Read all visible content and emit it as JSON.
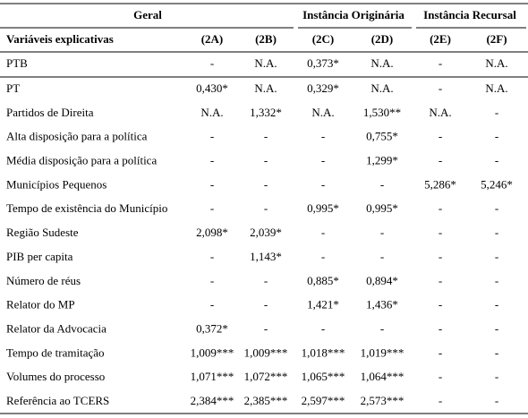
{
  "header": {
    "groups": [
      "Geral",
      "Instância Originária",
      "Instância Recursal"
    ]
  },
  "table": {
    "columns": [
      "Variáveis explicativas",
      "(2A)",
      "(2B)",
      "(2C)",
      "(2D)",
      "(2E)",
      "(2F)"
    ],
    "rows": [
      [
        "PTB",
        "-",
        "N.A.",
        "0,373*",
        "N.A.",
        "-",
        "N.A."
      ],
      [
        "PT",
        "0,430*",
        "N.A.",
        "0,329*",
        "N.A.",
        "-",
        "N.A."
      ],
      [
        "Partidos de Direita",
        "N.A.",
        "1,332*",
        "N.A.",
        "1,530**",
        "N.A.",
        "-"
      ],
      [
        "Alta disposição para a política",
        "-",
        "-",
        "-",
        "0,755*",
        "-",
        "-"
      ],
      [
        "Média disposição para a política",
        "-",
        "-",
        "-",
        "1,299*",
        "-",
        "-"
      ],
      [
        "Municípios Pequenos",
        "-",
        "-",
        "-",
        "-",
        "5,286*",
        "5,246*"
      ],
      [
        "Tempo de existência do Município",
        "-",
        "-",
        "0,995*",
        "0,995*",
        "-",
        "-"
      ],
      [
        "Região Sudeste",
        "2,098*",
        "2,039*",
        "-",
        "-",
        "-",
        "-"
      ],
      [
        "PIB per capita",
        "-",
        "1,143*",
        "-",
        "-",
        "-",
        "-"
      ],
      [
        "Número de réus",
        "-",
        "-",
        "0,885*",
        "0,894*",
        "-",
        "-"
      ],
      [
        "Relator do MP",
        "-",
        "-",
        "1,421*",
        "1,436*",
        "-",
        "-"
      ],
      [
        "Relator da Advocacia",
        "0,372*",
        "-",
        "-",
        "-",
        "-",
        "-"
      ],
      [
        "Tempo de tramitação",
        "1,009***",
        "1,009***",
        "1,018***",
        "1,019***",
        "-",
        "-"
      ],
      [
        "Volumes do processo",
        "1,071***",
        "1,072***",
        "1,065***",
        "1,064***",
        "-",
        "-"
      ],
      [
        "Referência ao TCERS",
        "2,384***",
        "2,385***",
        "2,597***",
        "2,573***",
        "-",
        "-"
      ]
    ]
  }
}
